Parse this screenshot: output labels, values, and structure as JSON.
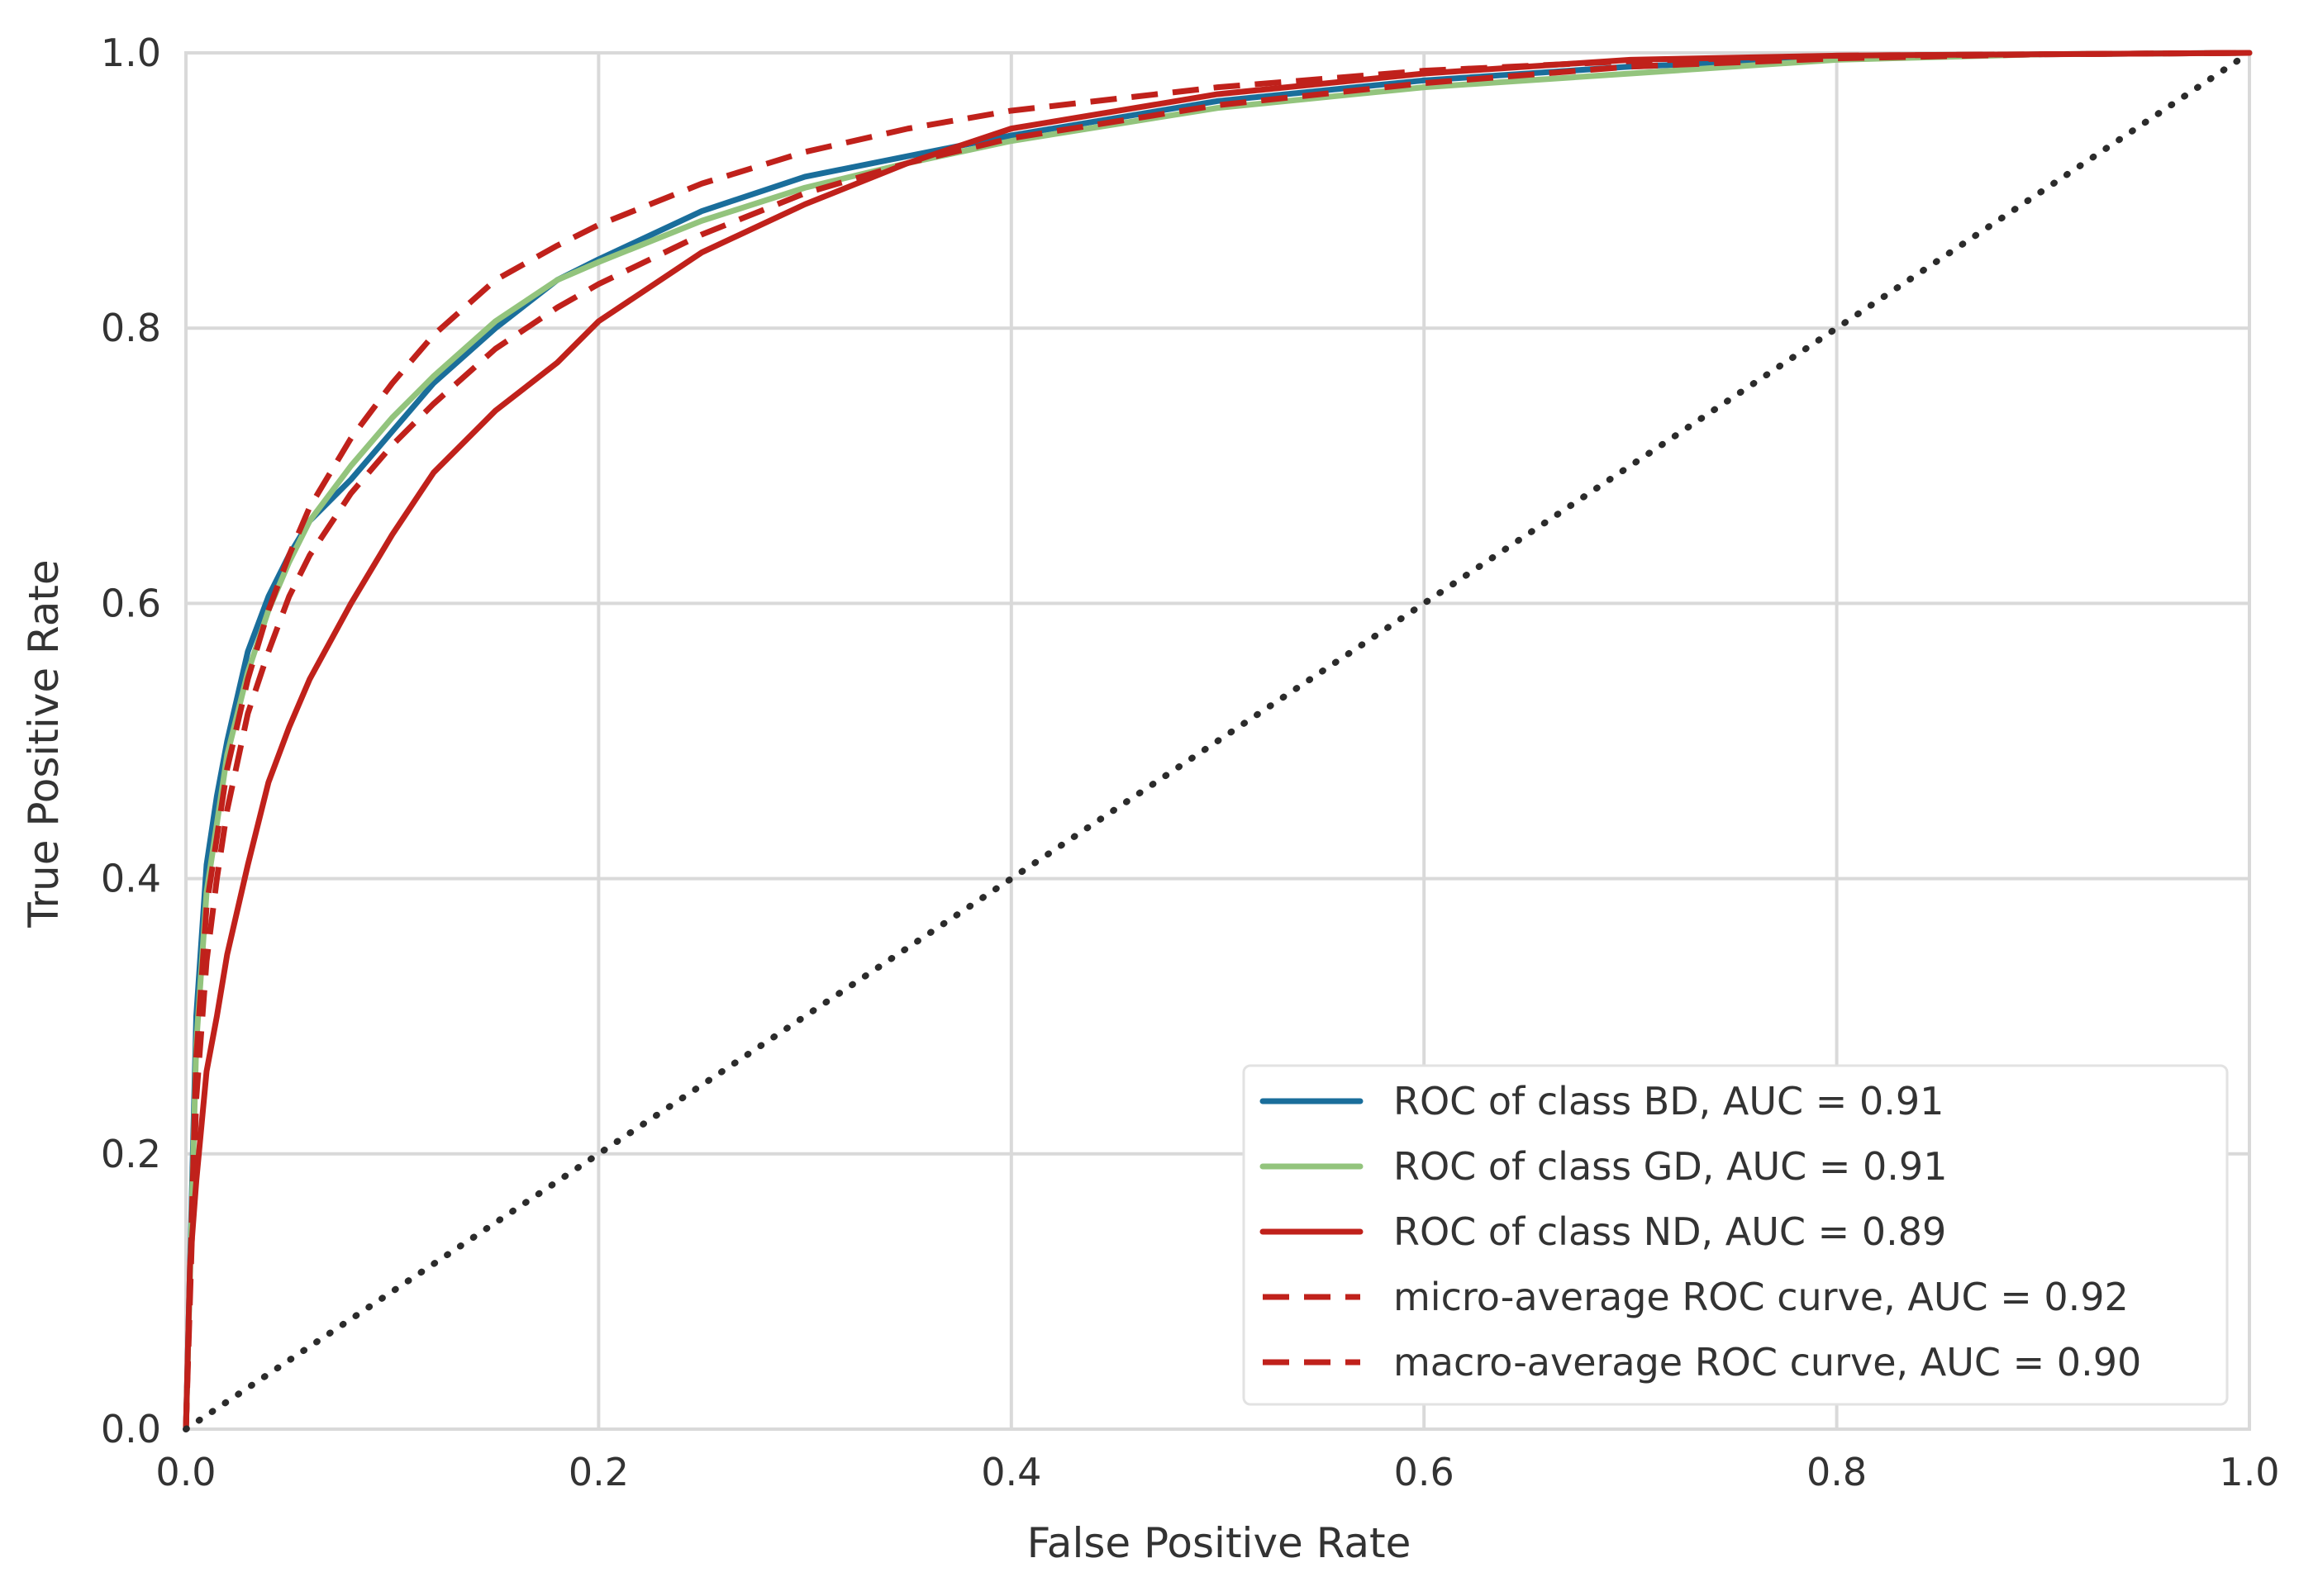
{
  "chart_data": {
    "type": "line",
    "title": "",
    "xlabel": "False Positive Rate",
    "ylabel": "True Positive Rate",
    "xlim": [
      0.0,
      1.0
    ],
    "ylim": [
      0.0,
      1.0
    ],
    "grid": true,
    "legend_position": "bottom-right",
    "xticks": [
      {
        "value": 0.0,
        "label": "0.0"
      },
      {
        "value": 0.2,
        "label": "0.2"
      },
      {
        "value": 0.4,
        "label": "0.4"
      },
      {
        "value": 0.6,
        "label": "0.6"
      },
      {
        "value": 0.8,
        "label": "0.8"
      },
      {
        "value": 1.0,
        "label": "1.0"
      }
    ],
    "yticks": [
      {
        "value": 0.0,
        "label": "0.0"
      },
      {
        "value": 0.2,
        "label": "0.2"
      },
      {
        "value": 0.4,
        "label": "0.4"
      },
      {
        "value": 0.6,
        "label": "0.6"
      },
      {
        "value": 0.8,
        "label": "0.8"
      },
      {
        "value": 1.0,
        "label": "1.0"
      }
    ],
    "colors": {
      "background": "#ffffff",
      "grid": "#d9d9d9",
      "axis_text": "#333333",
      "diagonal": "#2b2b2b",
      "legend_border": "#e2e2e2"
    },
    "series": [
      {
        "name": "ROC of class BD, AUC = 0.91",
        "color": "#1a6e9b",
        "style": "solid",
        "x": [
          0.0,
          0.005,
          0.01,
          0.015,
          0.02,
          0.03,
          0.04,
          0.05,
          0.06,
          0.08,
          0.1,
          0.12,
          0.15,
          0.18,
          0.2,
          0.25,
          0.3,
          0.35,
          0.4,
          0.5,
          0.6,
          0.7,
          0.8,
          0.9,
          1.0
        ],
        "y": [
          0.0,
          0.3,
          0.41,
          0.46,
          0.5,
          0.565,
          0.605,
          0.635,
          0.66,
          0.69,
          0.725,
          0.76,
          0.8,
          0.835,
          0.85,
          0.885,
          0.91,
          0.925,
          0.94,
          0.965,
          0.98,
          0.99,
          0.996,
          0.999,
          1.0
        ]
      },
      {
        "name": "ROC of class GD, AUC = 0.91",
        "color": "#93c47d",
        "style": "solid",
        "x": [
          0.0,
          0.005,
          0.01,
          0.015,
          0.02,
          0.03,
          0.04,
          0.05,
          0.06,
          0.08,
          0.1,
          0.12,
          0.15,
          0.18,
          0.2,
          0.25,
          0.3,
          0.35,
          0.4,
          0.5,
          0.6,
          0.7,
          0.8,
          0.9,
          1.0
        ],
        "y": [
          0.0,
          0.28,
          0.39,
          0.44,
          0.49,
          0.55,
          0.595,
          0.63,
          0.66,
          0.7,
          0.735,
          0.765,
          0.805,
          0.835,
          0.848,
          0.878,
          0.902,
          0.92,
          0.936,
          0.96,
          0.975,
          0.985,
          0.995,
          0.999,
          1.0
        ]
      },
      {
        "name": "ROC of class ND, AUC = 0.89",
        "color": "#c0211b",
        "style": "solid",
        "x": [
          0.0,
          0.002,
          0.005,
          0.01,
          0.015,
          0.02,
          0.03,
          0.04,
          0.05,
          0.06,
          0.08,
          0.1,
          0.12,
          0.15,
          0.18,
          0.2,
          0.25,
          0.3,
          0.35,
          0.4,
          0.5,
          0.6,
          0.7,
          0.8,
          0.9,
          1.0
        ],
        "y": [
          0.0,
          0.12,
          0.18,
          0.26,
          0.3,
          0.345,
          0.41,
          0.47,
          0.51,
          0.545,
          0.6,
          0.65,
          0.695,
          0.74,
          0.775,
          0.805,
          0.855,
          0.89,
          0.92,
          0.945,
          0.97,
          0.985,
          0.995,
          0.998,
          0.999,
          1.0
        ]
      },
      {
        "name": "micro-average ROC curve, AUC = 0.92",
        "color": "#c0211b",
        "style": "dashed",
        "x": [
          0.0,
          0.005,
          0.01,
          0.015,
          0.02,
          0.03,
          0.04,
          0.05,
          0.06,
          0.08,
          0.1,
          0.12,
          0.15,
          0.18,
          0.2,
          0.25,
          0.3,
          0.35,
          0.4,
          0.5,
          0.6,
          0.7,
          0.8,
          0.9,
          1.0
        ],
        "y": [
          0.0,
          0.27,
          0.38,
          0.43,
          0.48,
          0.545,
          0.595,
          0.635,
          0.67,
          0.72,
          0.76,
          0.795,
          0.835,
          0.86,
          0.875,
          0.905,
          0.928,
          0.945,
          0.958,
          0.975,
          0.987,
          0.994,
          0.998,
          0.999,
          1.0
        ]
      },
      {
        "name": "macro-average ROC curve, AUC = 0.90",
        "color": "#c0211b",
        "style": "dashed",
        "x": [
          0.0,
          0.005,
          0.01,
          0.015,
          0.02,
          0.03,
          0.04,
          0.05,
          0.06,
          0.08,
          0.1,
          0.12,
          0.15,
          0.18,
          0.2,
          0.25,
          0.3,
          0.35,
          0.4,
          0.5,
          0.6,
          0.7,
          0.8,
          0.9,
          1.0
        ],
        "y": [
          0.0,
          0.24,
          0.34,
          0.4,
          0.45,
          0.52,
          0.565,
          0.605,
          0.635,
          0.68,
          0.715,
          0.745,
          0.785,
          0.815,
          0.832,
          0.868,
          0.898,
          0.92,
          0.938,
          0.962,
          0.978,
          0.99,
          0.996,
          0.999,
          1.0
        ]
      }
    ],
    "reference_line": {
      "name": "chance diagonal",
      "x": [
        0.0,
        1.0
      ],
      "y": [
        0.0,
        1.0
      ],
      "style": "dotted"
    }
  }
}
